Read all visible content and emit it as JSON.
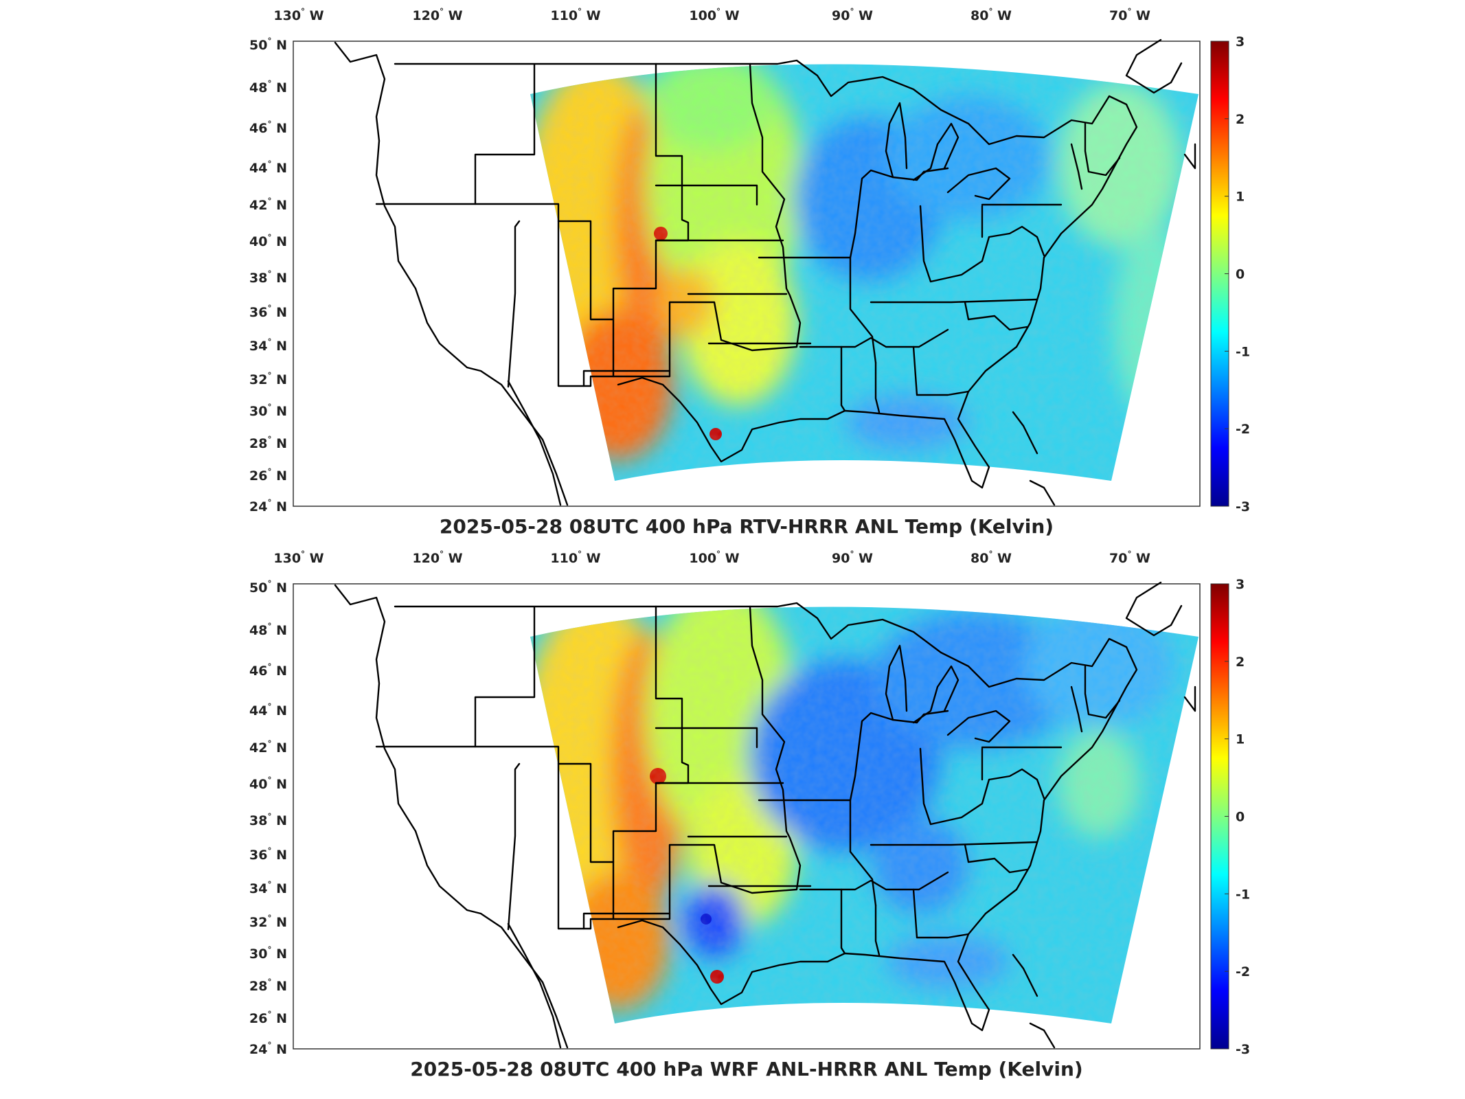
{
  "colors": {
    "colormap": [
      "#00008f",
      "#0000ff",
      "#0080ff",
      "#00ffff",
      "#80ff80",
      "#ffff00",
      "#ff8000",
      "#ff0000",
      "#800000"
    ],
    "background": "#ffffff",
    "border_line": "#000000"
  },
  "colorbar_ticks": [
    "3",
    "2",
    "1",
    "0",
    "-1",
    "-2",
    "-3"
  ],
  "longitude_labels": [
    {
      "deg": "130",
      "hemi": "W"
    },
    {
      "deg": "120",
      "hemi": "W"
    },
    {
      "deg": "110",
      "hemi": "W"
    },
    {
      "deg": "100",
      "hemi": "W"
    },
    {
      "deg": "90",
      "hemi": "W"
    },
    {
      "deg": "80",
      "hemi": "W"
    },
    {
      "deg": "70",
      "hemi": "W"
    }
  ],
  "latitude_labels": [
    {
      "deg": "50",
      "hemi": "N"
    },
    {
      "deg": "48",
      "hemi": "N"
    },
    {
      "deg": "46",
      "hemi": "N"
    },
    {
      "deg": "44",
      "hemi": "N"
    },
    {
      "deg": "42",
      "hemi": "N"
    },
    {
      "deg": "40",
      "hemi": "N"
    },
    {
      "deg": "38",
      "hemi": "N"
    },
    {
      "deg": "36",
      "hemi": "N"
    },
    {
      "deg": "34",
      "hemi": "N"
    },
    {
      "deg": "32",
      "hemi": "N"
    },
    {
      "deg": "30",
      "hemi": "N"
    },
    {
      "deg": "28",
      "hemi": "N"
    },
    {
      "deg": "26",
      "hemi": "N"
    },
    {
      "deg": "24",
      "hemi": "N"
    }
  ],
  "panels": [
    {
      "title": "2025-05-28 08UTC 400 hPa RTV-HRRR ANL Temp (Kelvin)",
      "colorbar_range": [
        -3,
        3
      ],
      "field_values": {
        "west_high_terrain": 1.3,
        "southwest": 1.5,
        "plains": 0.5,
        "upper_midwest": -1.0,
        "east": -0.6,
        "atlantic": -0.5,
        "texas_peak": 2.8
      }
    },
    {
      "title": "2025-05-28 08UTC 400 hPa WRF ANL-HRRR ANL Temp (Kelvin)",
      "colorbar_range": [
        -3,
        3
      ],
      "field_values": {
        "west_high_terrain": 1.4,
        "southwest": 1.3,
        "plains": 0.3,
        "upper_midwest": -1.2,
        "east": -0.8,
        "atlantic": -0.6,
        "texas_peak": 2.9,
        "south_texas_low": -1.8
      }
    }
  ]
}
